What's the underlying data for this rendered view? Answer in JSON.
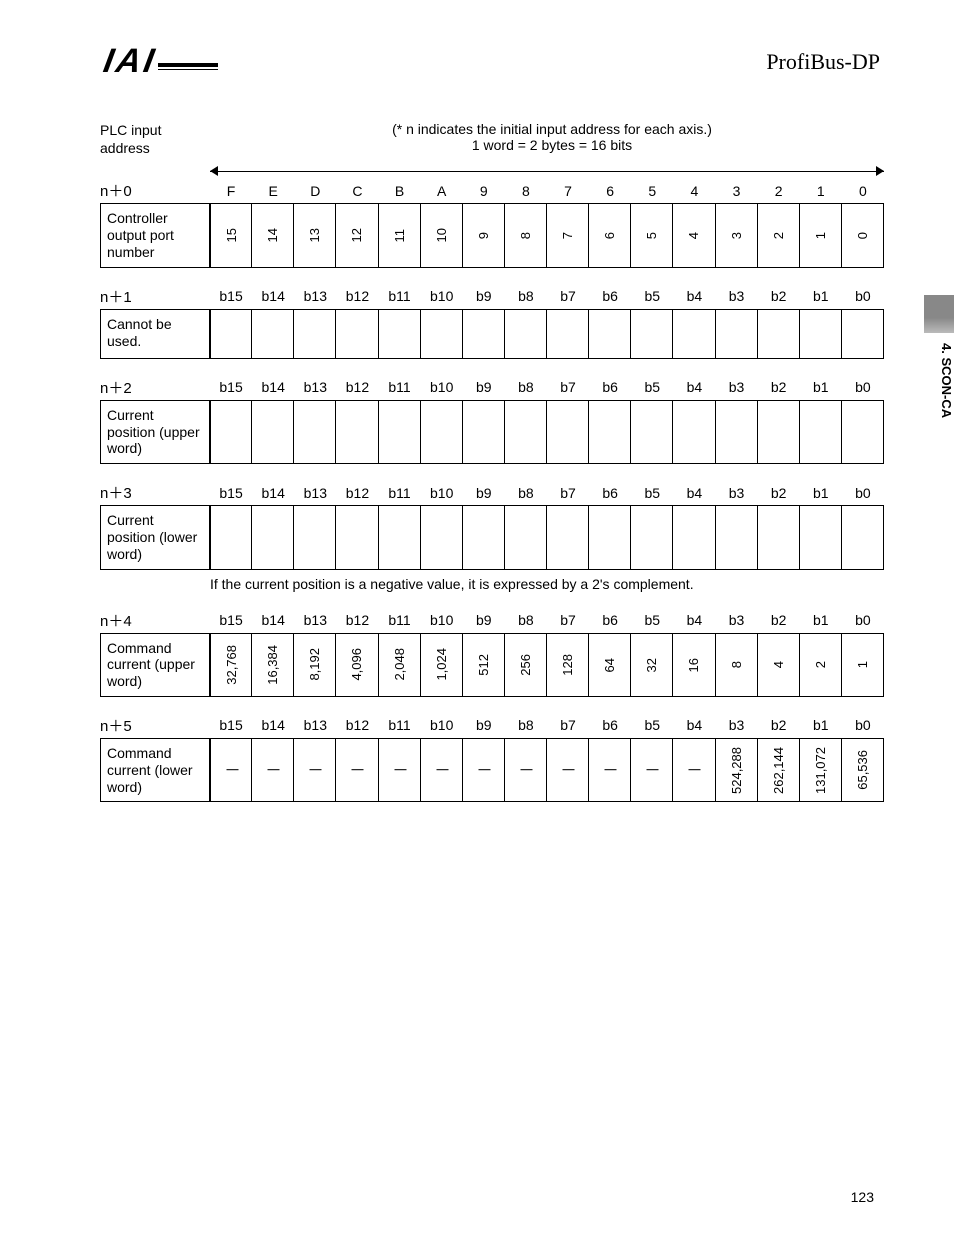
{
  "header": {
    "logo": "IAI",
    "brand": "ProfiBus-DP"
  },
  "sideTab": "4. SCON-CA",
  "pageNum": "123",
  "intro": {
    "addrLabel1": "PLC input",
    "addrLabel2": "address",
    "note": "(* n indicates the initial input address for each axis.)",
    "wordLine": "1 word = 2 bytes = 16 bits"
  },
  "hexHeaders": [
    "F",
    "E",
    "D",
    "C",
    "B",
    "A",
    "9",
    "8",
    "7",
    "6",
    "5",
    "4",
    "3",
    "2",
    "1",
    "0"
  ],
  "bitHeaders": [
    "b15",
    "b14",
    "b13",
    "b12",
    "b11",
    "b10",
    "b9",
    "b8",
    "b7",
    "b6",
    "b5",
    "b4",
    "b3",
    "b2",
    "b1",
    "b0"
  ],
  "rows": {
    "r0": {
      "addr": "n＋0",
      "label": "Controller output port number",
      "cells": [
        "15",
        "14",
        "13",
        "12",
        "11",
        "10",
        "9",
        "8",
        "7",
        "6",
        "5",
        "4",
        "3",
        "2",
        "1",
        "0"
      ],
      "vertical": true
    },
    "r1": {
      "addr": "n＋1",
      "label": "Cannot be used.",
      "cells": [
        "",
        "",
        "",
        "",
        "",
        "",
        "",
        "",
        "",
        "",
        "",
        "",
        "",
        "",
        "",
        ""
      ]
    },
    "r2": {
      "addr": "n＋2",
      "label": "Current position (upper word)",
      "cells": [
        "",
        "",
        "",
        "",
        "",
        "",
        "",
        "",
        "",
        "",
        "",
        "",
        "",
        "",
        "",
        ""
      ]
    },
    "r3": {
      "addr": "n＋3",
      "label": "Current position (lower word)",
      "cells": [
        "",
        "",
        "",
        "",
        "",
        "",
        "",
        "",
        "",
        "",
        "",
        "",
        "",
        "",
        "",
        ""
      ],
      "note": "If the current position is a negative value, it is expressed by a 2's complement."
    },
    "r4": {
      "addr": "n＋4",
      "label": "Command current (upper word)",
      "cells": [
        "32,768",
        "16,384",
        "8,192",
        "4,096",
        "2,048",
        "1,024",
        "512",
        "256",
        "128",
        "64",
        "32",
        "16",
        "8",
        "4",
        "2",
        "1"
      ],
      "vertical": true
    },
    "r5": {
      "addr": "n＋5",
      "label": "Command current (lower word)",
      "cells": [
        "|",
        "|",
        "|",
        "|",
        "|",
        "|",
        "|",
        "|",
        "|",
        "|",
        "|",
        "|",
        "524,288",
        "262,144",
        "131,072",
        "65,536"
      ],
      "vertical": true
    }
  }
}
